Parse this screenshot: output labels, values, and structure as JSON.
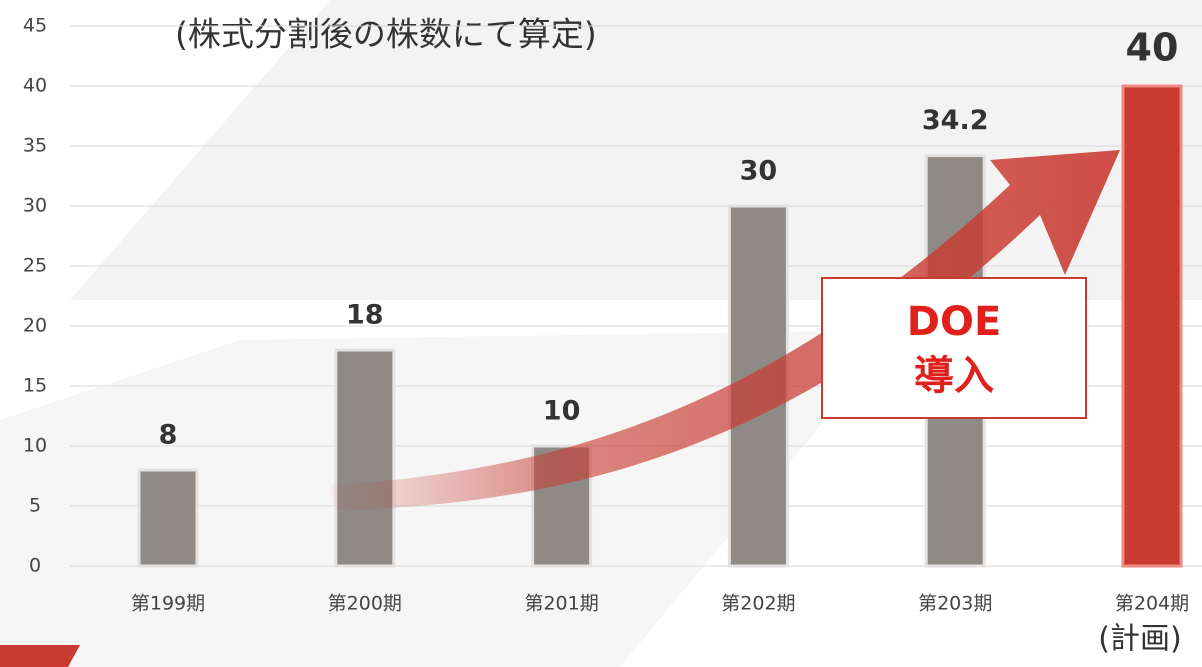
{
  "chart_data": {
    "type": "bar",
    "subtitle": "(株式分割後の株数にて算定)",
    "categories": [
      "第199期",
      "第200期",
      "第201期",
      "第202期",
      "第203期",
      "第204期"
    ],
    "values": [
      8,
      18,
      10,
      30,
      34.2,
      40
    ],
    "colors": [
      "#8f8a86",
      "#8f8a86",
      "#8f8a86",
      "#8f8a86",
      "#8f8a86",
      "#c93a31"
    ],
    "category_note": "(計画)",
    "annotation": [
      "DOE",
      "導入"
    ],
    "ylim": [
      0,
      45
    ],
    "yticks": [
      0,
      5,
      10,
      15,
      20,
      25,
      30,
      35,
      40,
      45
    ],
    "grid": true
  }
}
